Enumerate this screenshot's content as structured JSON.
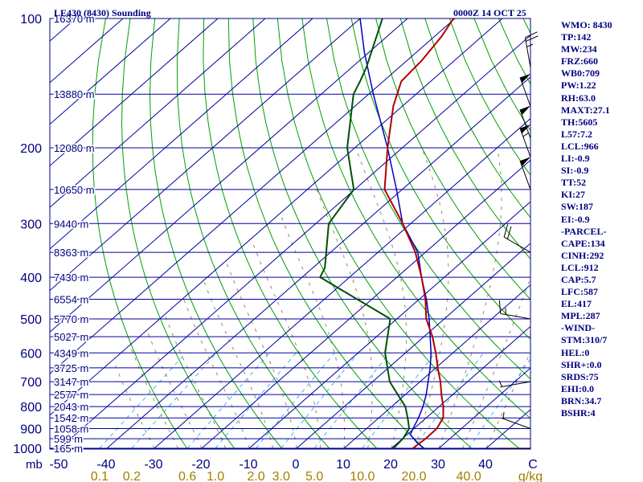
{
  "header": {
    "title": "LE430 (8430) Sounding",
    "valid_time": "0000Z 14 OCT 25"
  },
  "indices": [
    "WMO: 8430",
    "TP:142",
    "MW:234",
    "FRZ:660",
    "WB0:709",
    "PW:1.22",
    "RH:63.0",
    "MAXT:27.1",
    "TH:5605",
    "L57:7.2",
    "LCL:966",
    "LI:-0.9",
    "SI:-0.9",
    "TT:52",
    "KI:27",
    "SW:187",
    "EI:-0.9",
    "-PARCEL-",
    "CAPE:134",
    "CINH:292",
    "LCL:912",
    "CAP:5.7",
    "LFC:587",
    "EL:417",
    "MPL:287",
    "-WIND-",
    "STM:310/7",
    "HEL:0",
    "SHR+:0.0",
    "SRDS:75",
    "EHI:0.0",
    "BRN:34.7",
    "BSHR:4"
  ],
  "colors": {
    "frame": "#000080",
    "isobar": "#0000a0",
    "dry_adiabat": "#00a000",
    "moist_adiabat": "#9a8a60",
    "mixing_ratio": "#40b0ff",
    "temperature": "#b00000",
    "dewpoint": "#005000",
    "parcel": "#0000c0",
    "mixing_labels": "#a08000",
    "wind": "#000000"
  },
  "chart_data": {
    "type": "skew-t",
    "x_axis_unit": "C",
    "x_ticks": [
      "-50",
      "-40",
      "-30",
      "-20",
      "-10",
      "0",
      "10",
      "20",
      "30",
      "40",
      "C"
    ],
    "x_tick_values": [
      -50,
      -40,
      -30,
      -20,
      -10,
      0,
      10,
      20,
      30,
      40,
      50
    ],
    "pressure_axis_label": "mb",
    "pressure_labels": [
      100,
      200,
      300,
      400,
      500,
      600,
      700,
      800,
      900,
      1000
    ],
    "mixing_ratio_unit": "g/kg",
    "mixing_ratio_labels": [
      "0.1",
      "0.2",
      "0.6",
      "1.0",
      "2.0",
      "3.0",
      "5.0",
      "10.0",
      "20.0",
      "40.0"
    ],
    "mixing_ratio_values": [
      0.1,
      0.2,
      0.6,
      1.0,
      2.0,
      3.0,
      5.0,
      10.0,
      20.0,
      40.0
    ],
    "height_levels": [
      {
        "p": 1000,
        "label": "165 m"
      },
      {
        "p": 950,
        "label": "599 m"
      },
      {
        "p": 900,
        "label": "1058 m"
      },
      {
        "p": 850,
        "label": "1542 m"
      },
      {
        "p": 800,
        "label": "2043 m"
      },
      {
        "p": 750,
        "label": "2577 m"
      },
      {
        "p": 700,
        "label": "3147 m"
      },
      {
        "p": 650,
        "label": "3725 m"
      },
      {
        "p": 600,
        "label": "4349 m"
      },
      {
        "p": 550,
        "label": "5027 m"
      },
      {
        "p": 500,
        "label": "5770 m"
      },
      {
        "p": 450,
        "label": "6554 m"
      },
      {
        "p": 400,
        "label": "7430 m"
      },
      {
        "p": 350,
        "label": "8363 m"
      },
      {
        "p": 300,
        "label": "9440 m"
      },
      {
        "p": 250,
        "label": "10650 m"
      },
      {
        "p": 200,
        "label": "12080 m"
      },
      {
        "p": 150,
        "label": "13880 m"
      },
      {
        "p": 100,
        "label": "16370 m"
      }
    ],
    "temperature": [
      {
        "p": 1000,
        "t": 24.5
      },
      {
        "p": 950,
        "t": 24.9
      },
      {
        "p": 900,
        "t": 24.8
      },
      {
        "p": 850,
        "t": 23.6
      },
      {
        "p": 800,
        "t": 20.9
      },
      {
        "p": 750,
        "t": 17.6
      },
      {
        "p": 700,
        "t": 14.3
      },
      {
        "p": 650,
        "t": 10.4
      },
      {
        "p": 600,
        "t": 6.4
      },
      {
        "p": 550,
        "t": 1.8
      },
      {
        "p": 500,
        "t": -3.8
      },
      {
        "p": 450,
        "t": -8.7
      },
      {
        "p": 400,
        "t": -14.8
      },
      {
        "p": 350,
        "t": -22.1
      },
      {
        "p": 300,
        "t": -31.7
      },
      {
        "p": 250,
        "t": -43.7
      },
      {
        "p": 200,
        "t": -53.1
      },
      {
        "p": 160,
        "t": -61.9
      },
      {
        "p": 140,
        "t": -66.2
      },
      {
        "p": 125,
        "t": -66.9
      },
      {
        "p": 110,
        "t": -68.5
      },
      {
        "p": 100,
        "t": -70.3
      }
    ],
    "dewpoint": [
      {
        "p": 1000,
        "td": 20.4
      },
      {
        "p": 950,
        "td": 20.1
      },
      {
        "p": 900,
        "td": 19.0
      },
      {
        "p": 850,
        "td": 16.1
      },
      {
        "p": 800,
        "td": 12.9
      },
      {
        "p": 750,
        "td": 8.4
      },
      {
        "p": 700,
        "td": 3.6
      },
      {
        "p": 600,
        "td": -4.3
      },
      {
        "p": 500,
        "td": -11.4
      },
      {
        "p": 450,
        "td": -23.1
      },
      {
        "p": 400,
        "td": -36.2
      },
      {
        "p": 380,
        "td": -37.5
      },
      {
        "p": 300,
        "td": -47.3
      },
      {
        "p": 250,
        "td": -50.2
      },
      {
        "p": 200,
        "td": -61.6
      },
      {
        "p": 150,
        "td": -73.2
      },
      {
        "p": 140,
        "td": -74.9
      },
      {
        "p": 130,
        "td": -76.9
      },
      {
        "p": 100,
        "td": -85.3
      }
    ],
    "parcel": [
      {
        "p": 1000,
        "t": 26.8
      },
      {
        "p": 970,
        "t": 24.0
      },
      {
        "p": 930,
        "t": 20.7
      },
      {
        "p": 900,
        "t": 19.8
      },
      {
        "p": 850,
        "t": 18.4
      },
      {
        "p": 800,
        "t": 16.6
      },
      {
        "p": 750,
        "t": 14.4
      },
      {
        "p": 700,
        "t": 11.7
      },
      {
        "p": 650,
        "t": 8.8
      },
      {
        "p": 600,
        "t": 5.4
      },
      {
        "p": 550,
        "t": 1.3
      },
      {
        "p": 500,
        "t": -3.2
      },
      {
        "p": 450,
        "t": -8.5
      },
      {
        "p": 400,
        "t": -14.8
      },
      {
        "p": 350,
        "t": -21.6
      },
      {
        "p": 300,
        "t": -31.7
      },
      {
        "p": 250,
        "t": -41.2
      },
      {
        "p": 200,
        "t": -53.1
      },
      {
        "p": 150,
        "t": -69.0
      },
      {
        "p": 120,
        "t": -80.9
      },
      {
        "p": 100,
        "t": -90.0
      }
    ],
    "winds": [
      {
        "p": 1000,
        "dir": 270,
        "spd": 0
      },
      {
        "p": 900,
        "dir": 290,
        "spd": 5
      },
      {
        "p": 700,
        "dir": 260,
        "spd": 5
      },
      {
        "p": 500,
        "dir": 280,
        "spd": 15
      },
      {
        "p": 350,
        "dir": 300,
        "spd": 20
      },
      {
        "p": 250,
        "dir": 340,
        "spd": 50
      },
      {
        "p": 210,
        "dir": 340,
        "spd": 55
      },
      {
        "p": 190,
        "dir": 340,
        "spd": 50
      },
      {
        "p": 160,
        "dir": 340,
        "spd": 50
      },
      {
        "p": 130,
        "dir": 350,
        "spd": 25
      }
    ]
  }
}
